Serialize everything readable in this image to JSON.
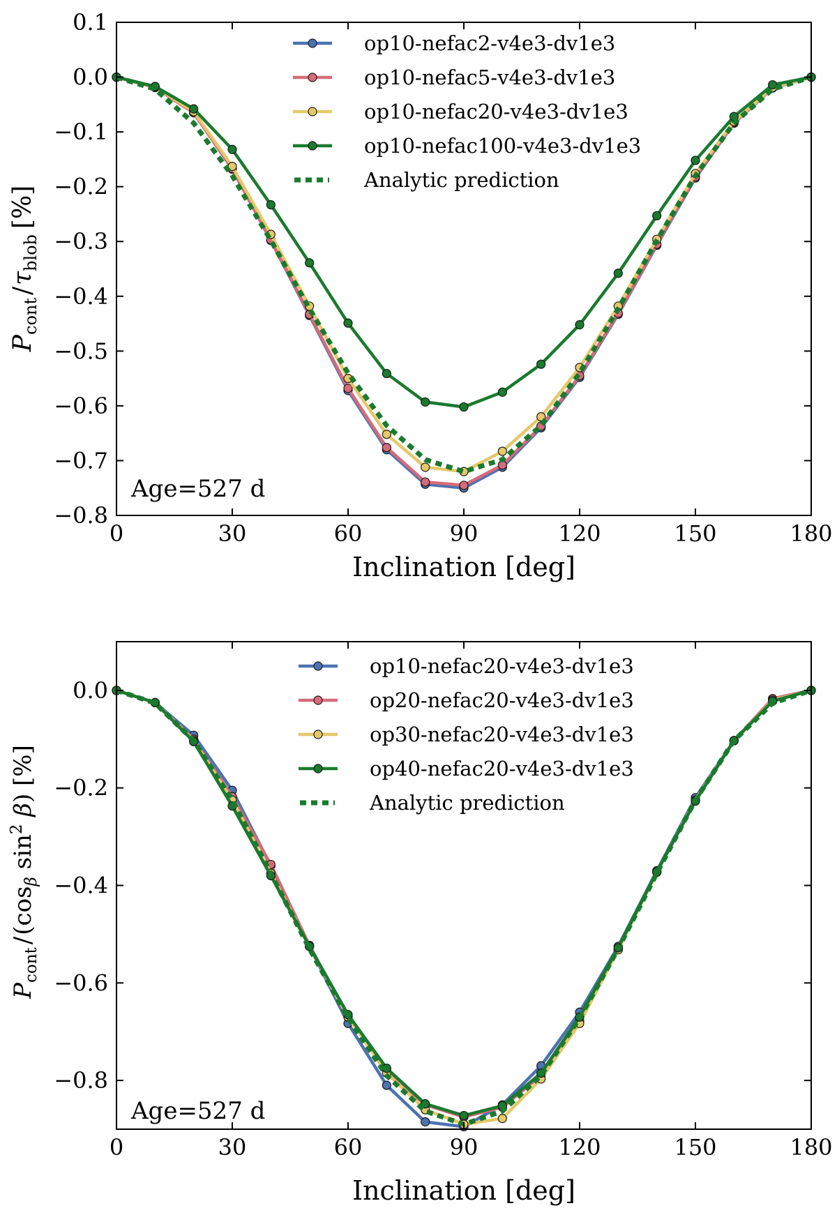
{
  "chart_data": [
    {
      "type": "line",
      "xlabel": "Inclination [deg]",
      "ylabel": "P_cont / τ_blob [%]",
      "ylabel_parts": {
        "P": "P",
        "cont": "cont",
        "sep": "/",
        "tau": "τ",
        "blob": "blob",
        "unit": "[%]"
      },
      "annotation": "Age=527 d",
      "xlim": [
        0,
        180
      ],
      "ylim": [
        -0.8,
        0.1
      ],
      "xticks": [
        0,
        30,
        60,
        90,
        120,
        150,
        180
      ],
      "xtick_labels": [
        "0",
        "30",
        "60",
        "90",
        "120",
        "150",
        "180"
      ],
      "yticks": [
        0.1,
        0.0,
        -0.1,
        -0.2,
        -0.3,
        -0.4,
        -0.5,
        -0.6,
        -0.7,
        -0.8
      ],
      "ytick_labels": [
        "0.1",
        "0.0",
        "−0.1",
        "−0.2",
        "−0.3",
        "−0.4",
        "−0.5",
        "−0.6",
        "−0.7",
        "−0.8"
      ],
      "x": [
        0,
        10,
        20,
        30,
        40,
        50,
        60,
        70,
        80,
        90,
        100,
        110,
        120,
        130,
        140,
        150,
        160,
        170,
        180
      ],
      "legend_position": "upper-center",
      "series": [
        {
          "name": "op10-nefac2-v4e3-dv1e3",
          "color": "#4c72b0",
          "style": "solid-markers",
          "values": [
            0.0,
            -0.019,
            -0.065,
            -0.168,
            -0.298,
            -0.435,
            -0.572,
            -0.68,
            -0.743,
            -0.75,
            -0.712,
            -0.64,
            -0.548,
            -0.433,
            -0.307,
            -0.184,
            -0.084,
            -0.02,
            0.0
          ]
        },
        {
          "name": "op10-nefac5-v4e3-dv1e3",
          "color": "#d66b7a",
          "style": "solid-markers",
          "values": [
            0.0,
            -0.019,
            -0.065,
            -0.167,
            -0.297,
            -0.433,
            -0.568,
            -0.676,
            -0.739,
            -0.745,
            -0.708,
            -0.637,
            -0.545,
            -0.431,
            -0.305,
            -0.182,
            -0.083,
            -0.019,
            0.0
          ]
        },
        {
          "name": "op10-nefac20-v4e3-dv1e3",
          "color": "#e5c86a",
          "style": "solid-markers",
          "values": [
            0.0,
            -0.018,
            -0.063,
            -0.163,
            -0.287,
            -0.418,
            -0.55,
            -0.652,
            -0.712,
            -0.72,
            -0.683,
            -0.62,
            -0.53,
            -0.418,
            -0.296,
            -0.176,
            -0.081,
            -0.019,
            0.0
          ]
        },
        {
          "name": "op10-nefac100-v4e3-dv1e3",
          "color": "#1a7a2e",
          "style": "solid-markers",
          "values": [
            0.0,
            -0.017,
            -0.058,
            -0.132,
            -0.233,
            -0.339,
            -0.449,
            -0.541,
            -0.593,
            -0.602,
            -0.575,
            -0.524,
            -0.452,
            -0.358,
            -0.253,
            -0.152,
            -0.072,
            -0.014,
            0.0
          ]
        },
        {
          "name": "Analytic prediction",
          "color": "#1a7a2e",
          "style": "dotted",
          "values": [
            0.0,
            -0.022,
            -0.084,
            -0.18,
            -0.298,
            -0.423,
            -0.54,
            -0.636,
            -0.698,
            -0.72,
            -0.698,
            -0.636,
            -0.54,
            -0.423,
            -0.298,
            -0.18,
            -0.084,
            -0.022,
            0.0
          ]
        }
      ]
    },
    {
      "type": "line",
      "xlabel": "Inclination [deg]",
      "ylabel": "P_cont / (cos_β sin² β) [%]",
      "ylabel_parts": {
        "P": "P",
        "cont": "cont",
        "sep": "/",
        "open": "(cos",
        "beta": "β",
        "sin": " sin",
        "sq": "2",
        "beta2": " β",
        "unit": ") [%]"
      },
      "annotation": "Age=527 d",
      "xlim": [
        0,
        180
      ],
      "ylim": [
        -0.9,
        0.1
      ],
      "xticks": [
        0,
        30,
        60,
        90,
        120,
        150,
        180
      ],
      "xtick_labels": [
        "0",
        "30",
        "60",
        "90",
        "120",
        "150",
        "180"
      ],
      "yticks": [
        0.0,
        -0.2,
        -0.4,
        -0.6,
        -0.8
      ],
      "ytick_labels": [
        "0.0",
        "−0.2",
        "−0.4",
        "−0.6",
        "−0.8"
      ],
      "x": [
        0,
        10,
        20,
        30,
        40,
        50,
        60,
        70,
        80,
        90,
        100,
        110,
        120,
        130,
        140,
        150,
        160,
        170,
        180
      ],
      "legend_position": "upper-center",
      "series": [
        {
          "name": "op10-nefac20-v4e3-dv1e3",
          "color": "#4c72b0",
          "style": "solid-markers",
          "values": [
            0.0,
            -0.025,
            -0.092,
            -0.205,
            -0.36,
            -0.525,
            -0.683,
            -0.81,
            -0.885,
            -0.895,
            -0.85,
            -0.77,
            -0.66,
            -0.525,
            -0.37,
            -0.22,
            -0.103,
            -0.017,
            0.0
          ]
        },
        {
          "name": "op20-nefac20-v4e3-dv1e3",
          "color": "#d66b7a",
          "style": "solid-markers",
          "values": [
            0.0,
            -0.025,
            -0.1,
            -0.218,
            -0.357,
            -0.523,
            -0.67,
            -0.78,
            -0.85,
            -0.875,
            -0.855,
            -0.79,
            -0.678,
            -0.53,
            -0.372,
            -0.225,
            -0.103,
            -0.017,
            0.0
          ]
        },
        {
          "name": "op30-nefac20-v4e3-dv1e3",
          "color": "#e5c86a",
          "style": "solid-markers",
          "values": [
            0.0,
            -0.025,
            -0.103,
            -0.225,
            -0.375,
            -0.525,
            -0.67,
            -0.785,
            -0.86,
            -0.89,
            -0.878,
            -0.797,
            -0.683,
            -0.532,
            -0.373,
            -0.225,
            -0.103,
            -0.02,
            0.0
          ]
        },
        {
          "name": "op40-nefac20-v4e3-dv1e3",
          "color": "#1a7a2e",
          "style": "solid-markers",
          "values": [
            0.0,
            -0.025,
            -0.105,
            -0.237,
            -0.38,
            -0.525,
            -0.665,
            -0.775,
            -0.848,
            -0.872,
            -0.852,
            -0.785,
            -0.67,
            -0.528,
            -0.372,
            -0.227,
            -0.103,
            -0.022,
            0.0
          ]
        },
        {
          "name": "Analytic prediction",
          "color": "#1a7a2e",
          "style": "dotted",
          "values": [
            0.0,
            -0.026,
            -0.103,
            -0.225,
            -0.375,
            -0.53,
            -0.672,
            -0.79,
            -0.863,
            -0.89,
            -0.863,
            -0.79,
            -0.672,
            -0.53,
            -0.375,
            -0.225,
            -0.103,
            -0.026,
            0.0
          ]
        }
      ]
    }
  ]
}
